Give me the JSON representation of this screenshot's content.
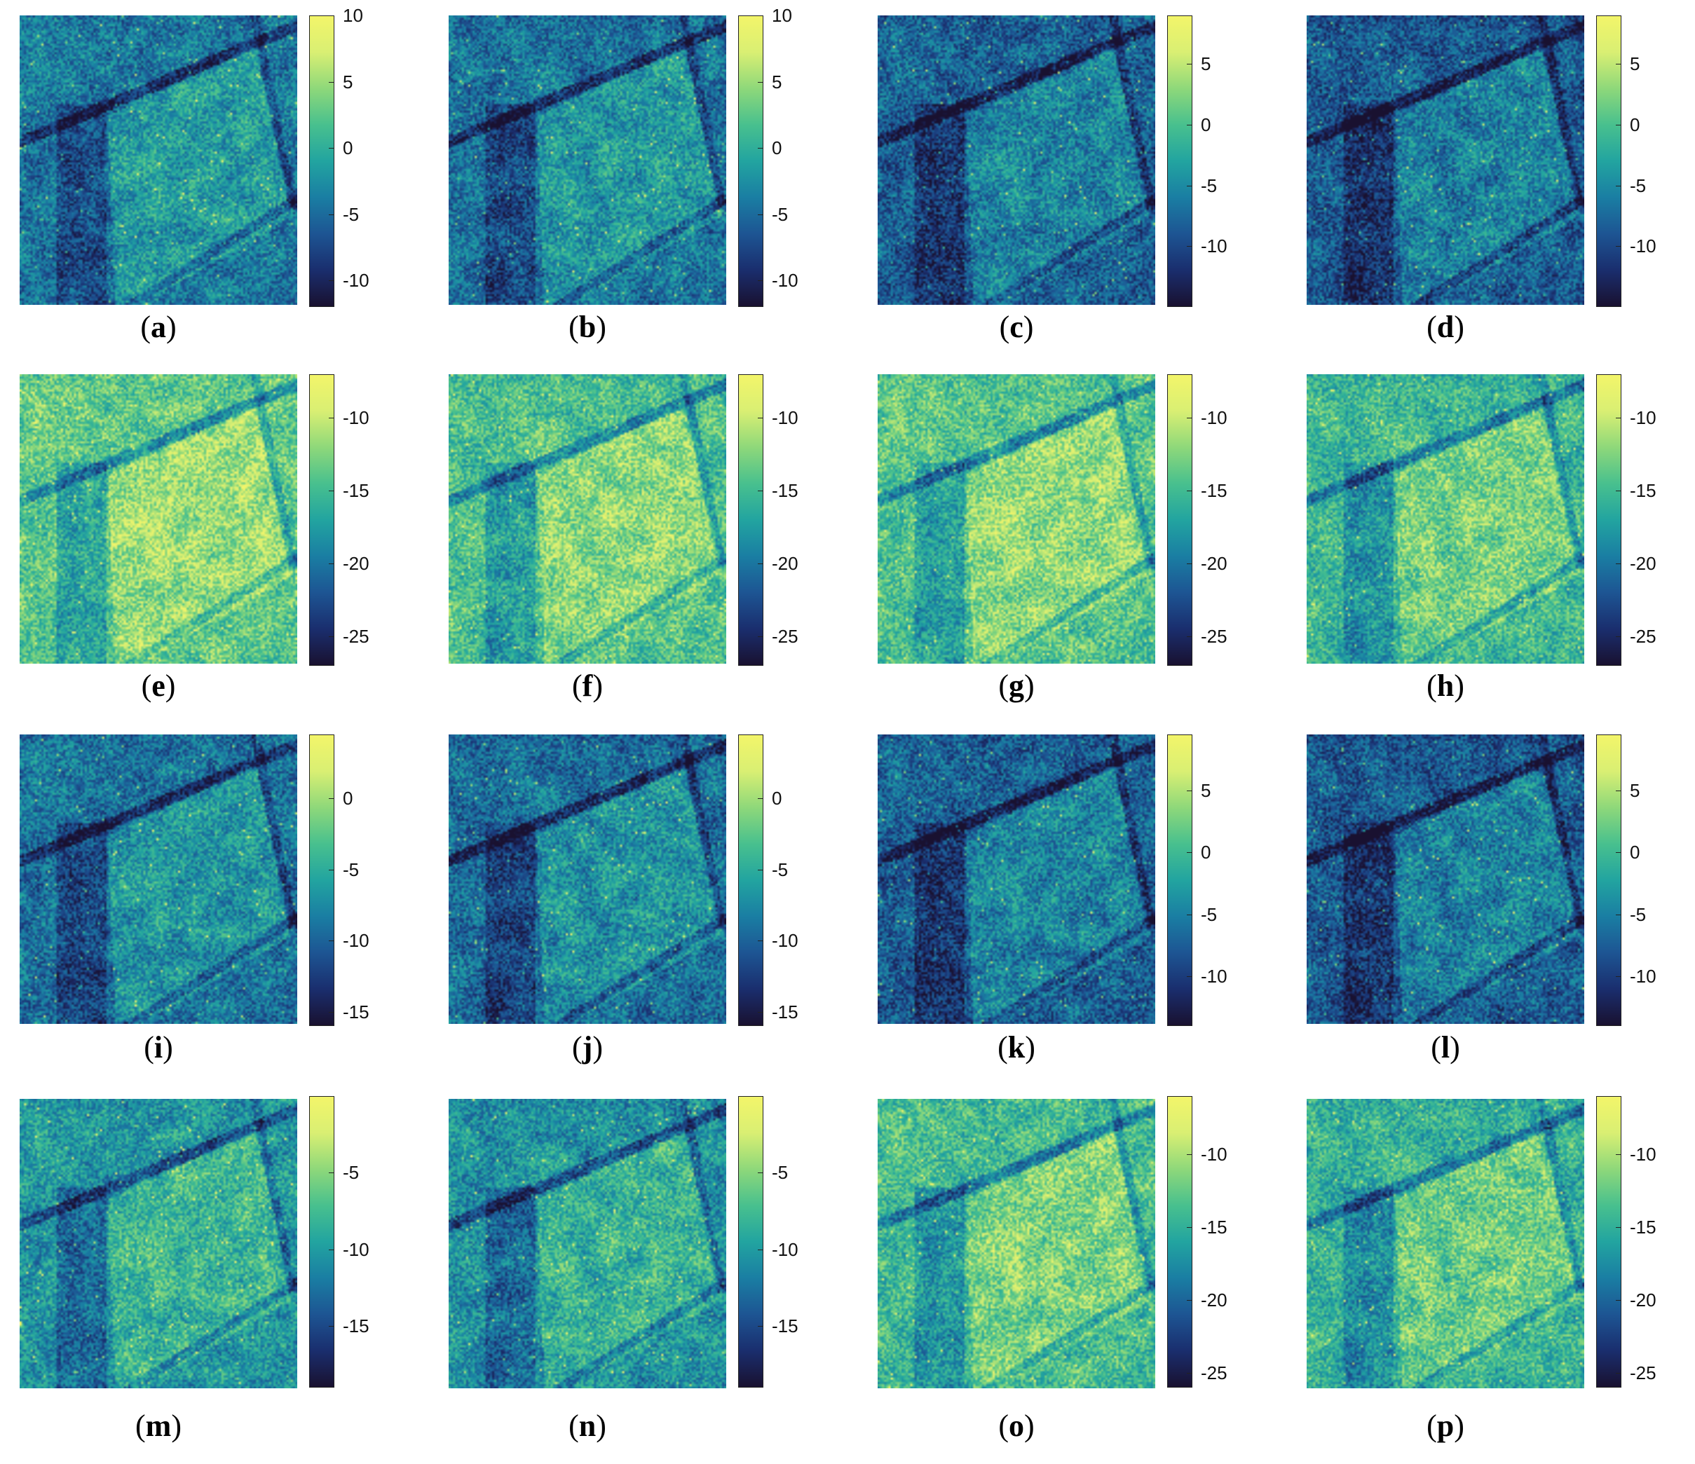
{
  "colormap": [
    "#191130",
    "#1a2e6e",
    "#1d5593",
    "#1a7ea3",
    "#22a4a0",
    "#48c08e",
    "#8ed87a",
    "#d9ef73",
    "#f3f56a"
  ],
  "panels": [
    {
      "id": "a",
      "caption": {
        "open": "(",
        "letter": "a",
        "close": ")"
      },
      "range": [
        -12,
        10
      ],
      "ticks": [
        "10",
        "5",
        "0",
        "-5",
        "-10"
      ],
      "tick_values": [
        10,
        5,
        0,
        -5,
        -10
      ],
      "brightness": 0.38
    },
    {
      "id": "b",
      "caption": {
        "open": "(",
        "letter": "b",
        "close": ")"
      },
      "range": [
        -12,
        10
      ],
      "ticks": [
        "10",
        "5",
        "0",
        "-5",
        "-10"
      ],
      "tick_values": [
        10,
        5,
        0,
        -5,
        -10
      ],
      "brightness": 0.36
    },
    {
      "id": "c",
      "caption": {
        "open": "(",
        "letter": "c",
        "close": ")"
      },
      "range": [
        -15,
        9
      ],
      "ticks": [
        "5",
        "0",
        "-5",
        "-10"
      ],
      "tick_values": [
        5,
        0,
        -5,
        -10
      ],
      "brightness": 0.3
    },
    {
      "id": "d",
      "caption": {
        "open": "(",
        "letter": "d",
        "close": ")"
      },
      "range": [
        -15,
        9
      ],
      "ticks": [
        "5",
        "0",
        "-5",
        "-10"
      ],
      "tick_values": [
        5,
        0,
        -5,
        -10
      ],
      "brightness": 0.28
    },
    {
      "id": "e",
      "caption": {
        "open": "(",
        "letter": "e",
        "close": ")"
      },
      "range": [
        -27,
        -7
      ],
      "ticks": [
        "-10",
        "-15",
        "-20",
        "-25"
      ],
      "tick_values": [
        -10,
        -15,
        -20,
        -25
      ],
      "brightness": 0.68
    },
    {
      "id": "f",
      "caption": {
        "open": "(",
        "letter": "f",
        "close": ")"
      },
      "range": [
        -27,
        -7
      ],
      "ticks": [
        "-10",
        "-15",
        "-20",
        "-25"
      ],
      "tick_values": [
        -10,
        -15,
        -20,
        -25
      ],
      "brightness": 0.64
    },
    {
      "id": "g",
      "caption": {
        "open": "(",
        "letter": "g",
        "close": ")"
      },
      "range": [
        -27,
        -7
      ],
      "ticks": [
        "-10",
        "-15",
        "-20",
        "-25"
      ],
      "tick_values": [
        -10,
        -15,
        -20,
        -25
      ],
      "brightness": 0.66
    },
    {
      "id": "h",
      "caption": {
        "open": "(",
        "letter": "h",
        "close": ")"
      },
      "range": [
        -27,
        -7
      ],
      "ticks": [
        "-10",
        "-15",
        "-20",
        "-25"
      ],
      "tick_values": [
        -10,
        -15,
        -20,
        -25
      ],
      "brightness": 0.6
    },
    {
      "id": "i",
      "caption": {
        "open": "(",
        "letter": "i",
        "close": ")"
      },
      "range": [
        -16,
        4.5
      ],
      "ticks": [
        "0",
        "-5",
        "-10",
        "-15"
      ],
      "tick_values": [
        0,
        -5,
        -10,
        -15
      ],
      "brightness": 0.36
    },
    {
      "id": "j",
      "caption": {
        "open": "(",
        "letter": "j",
        "close": ")"
      },
      "range": [
        -16,
        4.5
      ],
      "ticks": [
        "0",
        "-5",
        "-10",
        "-15"
      ],
      "tick_values": [
        0,
        -5,
        -10,
        -15
      ],
      "brightness": 0.34
    },
    {
      "id": "k",
      "caption": {
        "open": "(",
        "letter": "k",
        "close": ")"
      },
      "range": [
        -14,
        9.5
      ],
      "ticks": [
        "5",
        "0",
        "-5",
        "-10"
      ],
      "tick_values": [
        5,
        0,
        -5,
        -10
      ],
      "brightness": 0.3
    },
    {
      "id": "l",
      "caption": {
        "open": "(",
        "letter": "l",
        "close": ")"
      },
      "range": [
        -14,
        9.5
      ],
      "ticks": [
        "5",
        "0",
        "-5",
        "-10"
      ],
      "tick_values": [
        5,
        0,
        -5,
        -10
      ],
      "brightness": 0.28
    },
    {
      "id": "m",
      "caption": {
        "open": "(",
        "letter": "m",
        "close": ")"
      },
      "range": [
        -19,
        0
      ],
      "ticks": [
        "-5",
        "-10",
        "-15"
      ],
      "tick_values": [
        -5,
        -10,
        -15
      ],
      "brightness": 0.48
    },
    {
      "id": "n",
      "caption": {
        "open": "(",
        "letter": "n",
        "close": ")"
      },
      "range": [
        -19,
        0
      ],
      "ticks": [
        "-5",
        "-10",
        "-15"
      ],
      "tick_values": [
        -5,
        -10,
        -15
      ],
      "brightness": 0.46
    },
    {
      "id": "o",
      "caption": {
        "open": "(",
        "letter": "o",
        "close": ")"
      },
      "range": [
        -26,
        -6
      ],
      "ticks": [
        "-10",
        "-15",
        "-20",
        "-25"
      ],
      "tick_values": [
        -10,
        -15,
        -20,
        -25
      ],
      "brightness": 0.62
    },
    {
      "id": "p",
      "caption": {
        "open": "(",
        "letter": "p",
        "close": ")"
      },
      "range": [
        -26,
        -6
      ],
      "ticks": [
        "-10",
        "-15",
        "-20",
        "-25"
      ],
      "tick_values": [
        -10,
        -15,
        -20,
        -25
      ],
      "brightness": 0.58
    }
  ]
}
